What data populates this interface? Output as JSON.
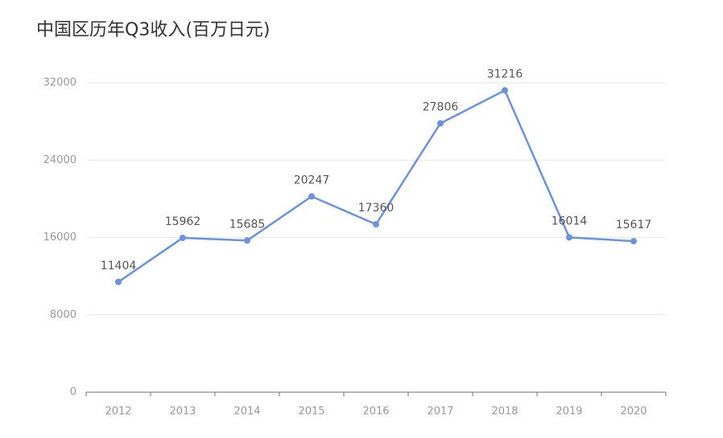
{
  "chart_data": {
    "type": "line",
    "title": "中国区历年Q3收入(百万日元)",
    "categories": [
      "2012",
      "2013",
      "2014",
      "2015",
      "2016",
      "2017",
      "2018",
      "2019",
      "2020"
    ],
    "values": [
      11404,
      15962,
      15685,
      20247,
      17360,
      27806,
      31216,
      16014,
      15617
    ],
    "color": "#6a93dc",
    "ylim": [
      0,
      32000
    ],
    "yticks": [
      0,
      8000,
      16000,
      24000,
      32000
    ],
    "grid": true
  }
}
